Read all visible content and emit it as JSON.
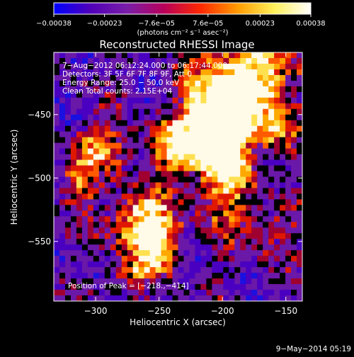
{
  "chart_data": {
    "type": "heatmap",
    "title": "Reconstructed RHESSI Image",
    "xlabel": "Heliocentric X (arcsec)",
    "ylabel": "Heliocentric Y (arcsec)",
    "xlim": [
      -333,
      -137
    ],
    "ylim": [
      -597,
      -401
    ],
    "x_ticks": [
      "−300",
      "−250",
      "−200",
      "−150"
    ],
    "x_tick_values": [
      -300,
      -250,
      -200,
      -150
    ],
    "y_ticks": [
      "−450",
      "−500",
      "−550"
    ],
    "y_tick_values": [
      -450,
      -500,
      -550
    ],
    "colorbar": {
      "ticks": [
        "−0.00038",
        "−0.00023",
        "−7.6e−05",
        "7.6e−05",
        "0.00023",
        "0.00038"
      ],
      "tick_values": [
        -0.00038,
        -0.00023,
        -7.6e-05,
        7.6e-05,
        0.00023,
        0.00038
      ],
      "range": [
        -0.00038,
        0.00038
      ],
      "unit_label": "(photons cm⁻² s⁻¹ asec⁻²)",
      "colors": [
        "#0000ff",
        "#5000b8",
        "#7a1ea8",
        "#b8005a",
        "#ff2800",
        "#ff9a00",
        "#fff05a",
        "#ffffff"
      ]
    },
    "info_lines": [
      "7−Aug−2012 06:12:24.000 to 06:17:44.000",
      "Detectors: 3F 5F 6F 7F 8F 9F, Att 0",
      "Energy Range: 25.0 − 50.0 keV",
      "Clean    Total counts: 2.15E+04"
    ],
    "peak_label": "Position of Peak = [−218.,−414]",
    "grid": false
  },
  "footer": {
    "date": "9−May−2014 05:19"
  }
}
